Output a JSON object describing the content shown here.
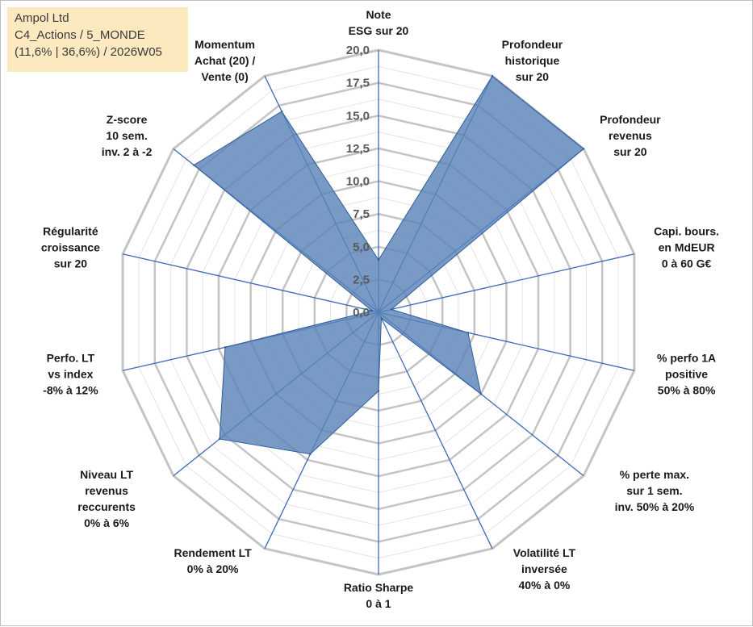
{
  "info": {
    "company": "Ampol Ltd",
    "line2": "C4_Actions / 5_MONDE",
    "line3": "(11,6% | 36,6%) / 2026W05"
  },
  "chart_data": {
    "type": "radar",
    "title": "",
    "rmin": 0,
    "rmax": 20,
    "ticks": [
      "0,0",
      "2,5",
      "5,0",
      "7,5",
      "10,0",
      "12,5",
      "15,0",
      "17,5",
      "20,0"
    ],
    "tick_values": [
      0,
      2.5,
      5,
      7.5,
      10,
      12.5,
      15,
      17.5,
      20
    ],
    "minor_rings": 16,
    "categories": [
      [
        "Note",
        "ESG sur 20"
      ],
      [
        "Profondeur",
        "historique",
        "sur 20"
      ],
      [
        "Profondeur",
        "revenus",
        "sur 20"
      ],
      [
        "Capi. bours.",
        "en MdEUR",
        "0 à 60 G€"
      ],
      [
        "% perfo 1A",
        "positive",
        "50% à 80%"
      ],
      [
        "% perte max.",
        "sur 1 sem.",
        "inv. 50% à 20%"
      ],
      [
        "Volatilité LT",
        "inversée",
        "40% à 0%"
      ],
      [
        "Ratio Sharpe",
        "0 à 1"
      ],
      [
        "Rendement LT",
        "0% à 20%"
      ],
      [
        "Niveau LT",
        "revenus",
        "reccurents",
        "0% à 6%"
      ],
      [
        "Perfo. LT",
        "vs index",
        "-8% à 12%"
      ],
      [
        "Régularité",
        "croissance",
        "sur 20"
      ],
      [
        "Z-score",
        "10 sem.",
        "inv. 2 à -2"
      ],
      [
        "Momentum",
        "Achat (20) /",
        "Vente (0)"
      ]
    ],
    "series": [
      {
        "name": "Ampol Ltd",
        "values": [
          4.0,
          20.0,
          20.0,
          1.0,
          7.0,
          10.0,
          0.5,
          6.0,
          12.0,
          15.5,
          12.0,
          0.5,
          18.0,
          17.0
        ]
      }
    ],
    "colors": {
      "fill": "#5b84b8",
      "fill_opacity": "0.82",
      "stroke": "#2e5d99",
      "spoke": "#3d6ab5",
      "ring": "#c8c8c8"
    }
  }
}
